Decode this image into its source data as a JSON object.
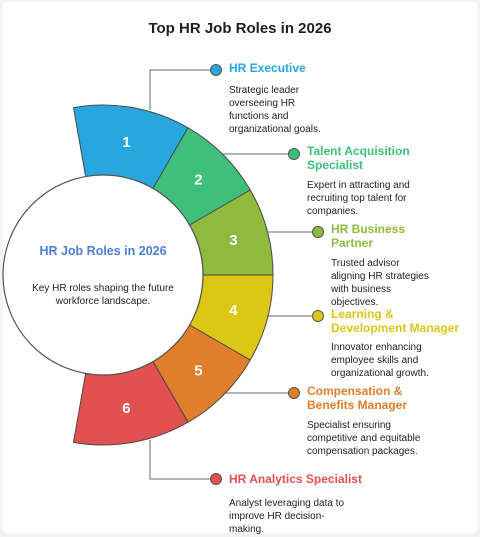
{
  "title": "Top HR Job Roles in 2026",
  "center": {
    "title": "HR Job Roles in 2026",
    "description": "Key HR roles shaping the future workforce landscape."
  },
  "roles": [
    {
      "number": "1",
      "title": "HR Executive",
      "description": "Strategic leader overseeing HR functions and organizational goals.",
      "color": "#27a7dd"
    },
    {
      "number": "2",
      "title": "Talent Acquisition Specialist",
      "description": "Expert in attracting and recruiting top talent for companies.",
      "color": "#3fc07a"
    },
    {
      "number": "3",
      "title": "HR Business Partner",
      "description": "Trusted advisor aligning HR strategies with business objectives.",
      "color": "#8fba3b"
    },
    {
      "number": "4",
      "title": "Learning & Development Manager",
      "description": "Innovator enhancing employee skills and organizational growth.",
      "color": "#dcc716"
    },
    {
      "number": "5",
      "title": "Compensation & Benefits Manager",
      "description": "Specialist ensuring competitive and equitable compensation packages.",
      "color": "#e07e2c"
    },
    {
      "number": "6",
      "title": "HR Analytics Specialist",
      "description": "Analyst leveraging data to improve HR decision-making.",
      "color": "#e35050"
    }
  ]
}
